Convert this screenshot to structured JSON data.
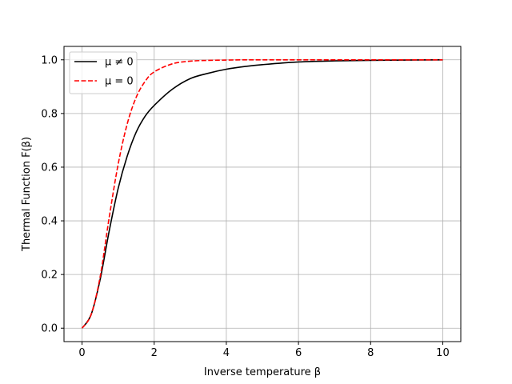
{
  "chart_data": {
    "type": "line",
    "title": "",
    "xlabel": "Inverse temperature β",
    "ylabel": "Thermal Function F(β)",
    "xlim": [
      -0.5,
      10.5
    ],
    "ylim": [
      -0.05,
      1.05
    ],
    "xticks": [
      0,
      2,
      4,
      6,
      8,
      10
    ],
    "yticks": [
      0.0,
      0.2,
      0.4,
      0.6,
      0.8,
      1.0
    ],
    "xtick_labels": [
      "0",
      "2",
      "4",
      "6",
      "8",
      "10"
    ],
    "ytick_labels": [
      "0.0",
      "0.2",
      "0.4",
      "0.6",
      "0.8",
      "1.0"
    ],
    "grid": true,
    "legend_position": "top-left",
    "x": [
      0,
      0.25,
      0.5,
      0.75,
      1.0,
      1.25,
      1.5,
      1.75,
      2.0,
      2.5,
      3.0,
      3.5,
      4.0,
      4.5,
      5.0,
      6.0,
      7.0,
      8.0,
      9.0,
      10.0
    ],
    "series": [
      {
        "name": "μ ≠ 0",
        "color": "#000000",
        "style": "solid",
        "values": [
          0.0,
          0.05,
          0.18,
          0.36,
          0.52,
          0.64,
          0.73,
          0.79,
          0.83,
          0.89,
          0.93,
          0.95,
          0.965,
          0.975,
          0.982,
          0.992,
          0.996,
          0.998,
          0.999,
          1.0
        ]
      },
      {
        "name": "μ = 0",
        "color": "#ff0000",
        "style": "dashed",
        "values": [
          0.0,
          0.05,
          0.19,
          0.41,
          0.61,
          0.76,
          0.86,
          0.92,
          0.955,
          0.985,
          0.995,
          0.998,
          0.999,
          1.0,
          1.0,
          1.0,
          1.0,
          1.0,
          1.0,
          1.0
        ]
      }
    ]
  }
}
